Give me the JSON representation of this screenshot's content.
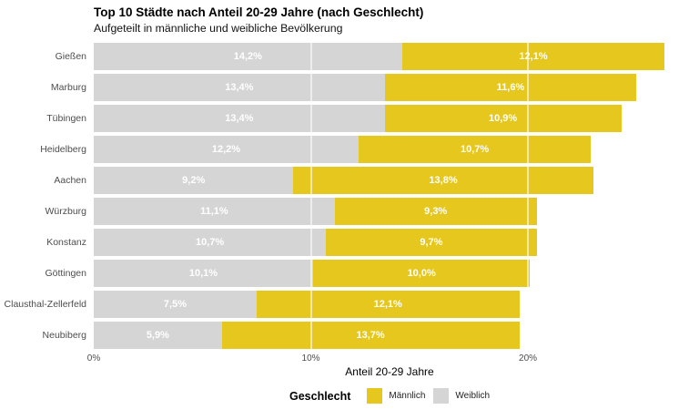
{
  "chart_data": {
    "type": "bar",
    "orientation": "horizontal",
    "stacked": true,
    "title": "Top 10 Städte nach Anteil 20-29 Jahre (nach Geschlecht)",
    "subtitle": "Aufgeteilt in männliche und weibliche Bevölkerung",
    "xlabel": "Anteil 20-29 Jahre",
    "ylabel": "",
    "xlim": [
      0,
      27.25
    ],
    "grid": true,
    "gridlines": [
      10,
      20
    ],
    "xticks": [
      {
        "value": 0,
        "label": "0%"
      },
      {
        "value": 10,
        "label": "10%"
      },
      {
        "value": 20,
        "label": "20%"
      }
    ],
    "categories": [
      "Gießen",
      "Marburg",
      "Tübingen",
      "Heidelberg",
      "Aachen",
      "Würzburg",
      "Konstanz",
      "Göttingen",
      "Clausthal-Zellerfeld",
      "Neubiberg"
    ],
    "series": [
      {
        "name": "Weiblich",
        "color": "#D5D5D5",
        "values": [
          14.2,
          13.4,
          13.4,
          12.2,
          9.2,
          11.1,
          10.7,
          10.1,
          7.5,
          5.9
        ],
        "labels": [
          "14,2%",
          "13,4%",
          "13,4%",
          "12,2%",
          "9,2%",
          "11,1%",
          "10,7%",
          "10,1%",
          "7,5%",
          "5,9%"
        ]
      },
      {
        "name": "Männlich",
        "color": "#E6C71E",
        "values": [
          12.1,
          11.6,
          10.9,
          10.7,
          13.8,
          9.3,
          9.7,
          10.0,
          12.1,
          13.7
        ],
        "labels": [
          "12,1%",
          "11,6%",
          "10,9%",
          "10,7%",
          "13,8%",
          "9,3%",
          "9,7%",
          "10,0%",
          "12,1%",
          "13,7%"
        ]
      }
    ],
    "legend": {
      "title": "Geschlecht",
      "position": "bottom",
      "entries": [
        {
          "label": "Männlich",
          "color": "#E6C71E"
        },
        {
          "label": "Weiblich",
          "color": "#D5D5D5"
        }
      ]
    },
    "colors": {
      "value_label": "#FFFFFF",
      "axis_text": "#4D4D4D",
      "gridline_over_bars": "rgba(255,255,255,0.6)"
    }
  }
}
